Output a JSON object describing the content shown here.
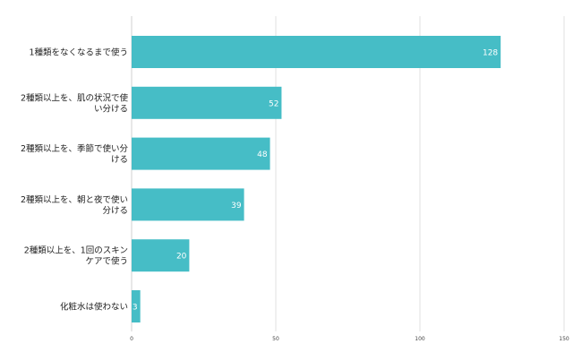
{
  "chart_data": {
    "type": "bar",
    "orientation": "horizontal",
    "categories": [
      [
        "1種類をなくなるまで使う"
      ],
      [
        "2種類以上を、肌の状況で使",
        "い分ける"
      ],
      [
        "2種類以上を、季節で使い分",
        "ける"
      ],
      [
        "2種類以上を、朝と夜で使い",
        "分ける"
      ],
      [
        "2種類以上を、1回のスキン",
        "ケアで使う"
      ],
      [
        "化粧水は使わない"
      ]
    ],
    "values": [
      128,
      52,
      48,
      39,
      20,
      3
    ],
    "xlim": [
      0,
      150
    ],
    "xticks": [
      0,
      50,
      100,
      150
    ],
    "xtick_labels": [
      "0",
      "50",
      "100",
      "150"
    ],
    "grid": true,
    "bar_color": "#46bdc6",
    "grid_color": "#d9d9d9",
    "title": "",
    "xlabel": "",
    "ylabel": ""
  }
}
